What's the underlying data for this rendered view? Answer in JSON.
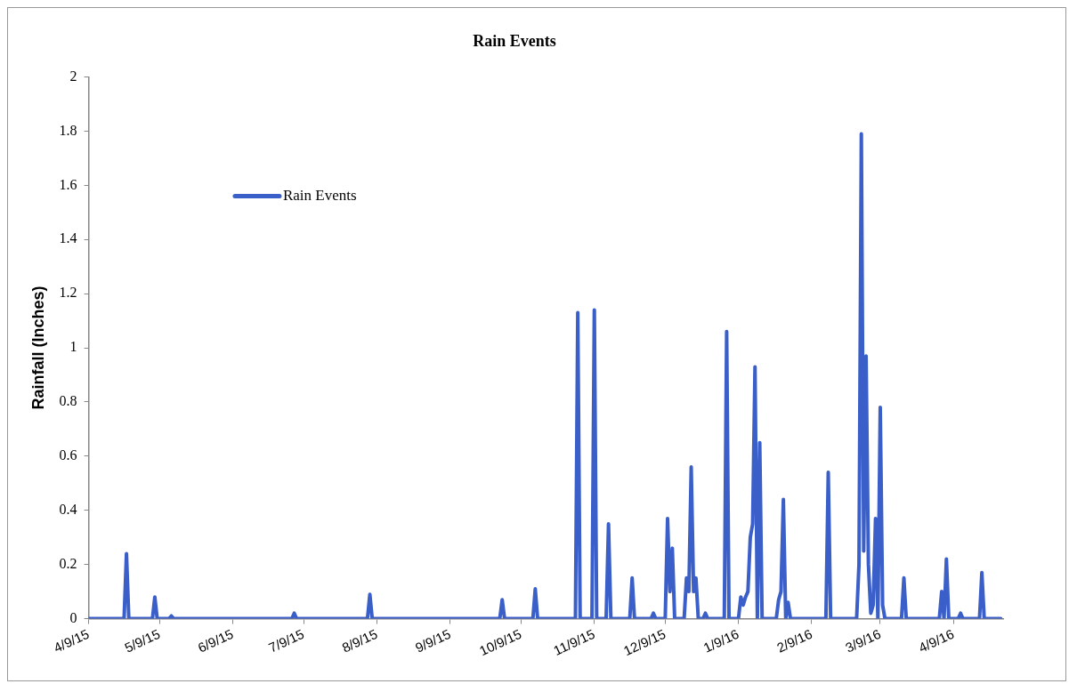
{
  "chart_data": {
    "type": "line",
    "title": "Rain Events",
    "ylabel": "Rainfall (Inches)",
    "legend": "top left",
    "grid": false,
    "marker": "none",
    "line_style": "solid",
    "xlim": [
      "2015-04-09",
      "2016-04-30"
    ],
    "xticks": [
      {
        "value": "2015-04-09",
        "label": "4/9/15"
      },
      {
        "value": "2015-05-09",
        "label": "5/9/15"
      },
      {
        "value": "2015-06-09",
        "label": "6/9/15"
      },
      {
        "value": "2015-07-09",
        "label": "7/9/15"
      },
      {
        "value": "2015-08-09",
        "label": "8/9/15"
      },
      {
        "value": "2015-09-09",
        "label": "9/9/15"
      },
      {
        "value": "2015-10-09",
        "label": "10/9/15"
      },
      {
        "value": "2015-11-09",
        "label": "11/9/15"
      },
      {
        "value": "2015-12-09",
        "label": "12/9/15"
      },
      {
        "value": "2016-01-09",
        "label": "1/9/16"
      },
      {
        "value": "2016-02-09",
        "label": "2/9/16"
      },
      {
        "value": "2016-03-09",
        "label": "3/9/16"
      },
      {
        "value": "2016-04-09",
        "label": "4/9/16"
      }
    ],
    "ylim": [
      0,
      2
    ],
    "yticks": [
      0,
      0.2,
      0.4,
      0.6,
      0.8,
      1,
      1.2,
      1.4,
      1.6,
      1.8,
      2
    ],
    "series": [
      {
        "name": "Rain Events",
        "color": "#3b5fc8",
        "x": [
          "2015-04-09",
          "2015-04-24",
          "2015-04-25",
          "2015-04-26",
          "2015-05-06",
          "2015-05-07",
          "2015-05-08",
          "2015-05-13",
          "2015-05-14",
          "2015-05-15",
          "2015-07-04",
          "2015-07-05",
          "2015-07-06",
          "2015-08-05",
          "2015-08-06",
          "2015-08-07",
          "2015-09-30",
          "2015-10-01",
          "2015-10-02",
          "2015-10-14",
          "2015-10-15",
          "2015-10-16",
          "2015-11-01",
          "2015-11-02",
          "2015-11-03",
          "2015-11-08",
          "2015-11-09",
          "2015-11-10",
          "2015-11-14",
          "2015-11-15",
          "2015-11-16",
          "2015-11-24",
          "2015-11-25",
          "2015-11-26",
          "2015-12-03",
          "2015-12-04",
          "2015-12-05",
          "2015-12-09",
          "2015-12-10",
          "2015-12-11",
          "2015-12-12",
          "2015-12-13",
          "2015-12-17",
          "2015-12-18",
          "2015-12-19",
          "2015-12-20",
          "2015-12-21",
          "2015-12-22",
          "2015-12-23",
          "2015-12-25",
          "2015-12-26",
          "2015-12-27",
          "2016-01-03",
          "2016-01-04",
          "2016-01-05",
          "2016-01-09",
          "2016-01-10",
          "2016-01-11",
          "2016-01-12",
          "2016-01-13",
          "2016-01-14",
          "2016-01-15",
          "2016-01-16",
          "2016-01-17",
          "2016-01-18",
          "2016-01-19",
          "2016-01-25",
          "2016-01-26",
          "2016-01-27",
          "2016-01-28",
          "2016-01-29",
          "2016-01-30",
          "2016-01-31",
          "2016-02-15",
          "2016-02-16",
          "2016-02-17",
          "2016-02-28",
          "2016-02-29",
          "2016-03-01",
          "2016-03-02",
          "2016-03-03",
          "2016-03-04",
          "2016-03-05",
          "2016-03-06",
          "2016-03-07",
          "2016-03-08",
          "2016-03-09",
          "2016-03-10",
          "2016-03-11",
          "2016-03-18",
          "2016-03-19",
          "2016-03-20",
          "2016-04-03",
          "2016-04-04",
          "2016-04-05",
          "2016-04-06",
          "2016-04-07",
          "2016-04-11",
          "2016-04-12",
          "2016-04-13",
          "2016-04-20",
          "2016-04-21",
          "2016-04-22",
          "2016-04-29"
        ],
        "values": [
          0,
          0,
          0.24,
          0,
          0,
          0.08,
          0,
          0,
          0.01,
          0,
          0,
          0.02,
          0,
          0,
          0.09,
          0,
          0,
          0.07,
          0,
          0,
          0.11,
          0,
          0,
          1.13,
          0,
          0,
          1.14,
          0,
          0,
          0.35,
          0,
          0,
          0.15,
          0,
          0,
          0.02,
          0,
          0,
          0.37,
          0.1,
          0.26,
          0,
          0,
          0.15,
          0.1,
          0.56,
          0.1,
          0.15,
          0,
          0,
          0.02,
          0,
          0,
          1.06,
          0,
          0,
          0.08,
          0.05,
          0.08,
          0.1,
          0.3,
          0.35,
          0.93,
          0,
          0.65,
          0,
          0,
          0.07,
          0.1,
          0.44,
          0,
          0.06,
          0,
          0,
          0.54,
          0,
          0,
          0.2,
          1.79,
          0.25,
          0.97,
          0.2,
          0.02,
          0.05,
          0.37,
          0,
          0.78,
          0.05,
          0,
          0,
          0.15,
          0,
          0,
          0.1,
          0,
          0.22,
          0,
          0,
          0.02,
          0,
          0,
          0.17,
          0,
          0
        ]
      }
    ]
  }
}
